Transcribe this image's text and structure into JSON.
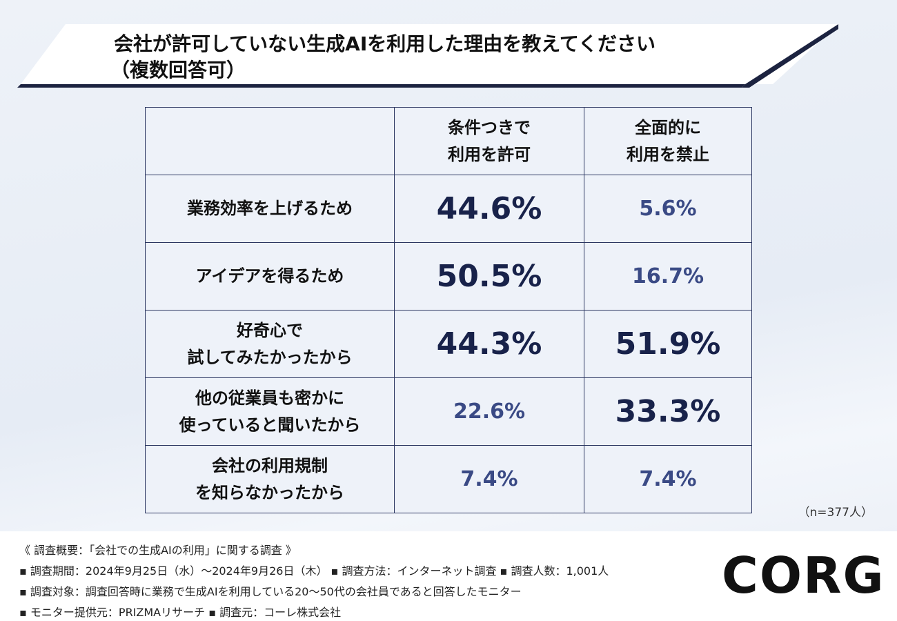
{
  "header": {
    "title": [
      "会社が許可していない生成AIを利用した理由を教えてください",
      "（複数回答可）"
    ]
  },
  "table": {
    "columns": [
      [
        "条件つきで",
        "利用を許可"
      ],
      [
        "全面的に",
        "利用を禁止"
      ]
    ],
    "rows": [
      {
        "label": [
          "業務効率を上げるため"
        ],
        "values": [
          "44.6%",
          "5.6%"
        ]
      },
      {
        "label": [
          "アイデアを得るため"
        ],
        "values": [
          "50.5%",
          "16.7%"
        ]
      },
      {
        "label": [
          "好奇心で",
          "試してみたかったから"
        ],
        "values": [
          "44.3%",
          "51.9%"
        ]
      },
      {
        "label": [
          "他の従業員も密かに",
          "使っていると聞いたから"
        ],
        "values": [
          "22.6%",
          "33.3%"
        ]
      },
      {
        "label": [
          "会社の利用規制",
          "を知らなかったから"
        ],
        "values": [
          "7.4%",
          "7.4%"
        ]
      }
    ]
  },
  "note": "（n=377人）",
  "footer": {
    "lines": [
      "《 調査概要：「会社での生成AIの利用」に関する調査 》",
      "▪ 調査期間：2024年9月25日（水）〜2024年9月26日（木） ▪ 調査方法：インターネット調査 ▪ 調査人数：1,001人",
      "▪ 調査対象：調査回答時に業務で生成AIを利用している20〜50代の会社員であると回答したモニター",
      "▪ モニター提供元：PRIZMAリサーチ ▪ 調査元：コーレ株式会社"
    ]
  },
  "logo": "CORG"
}
